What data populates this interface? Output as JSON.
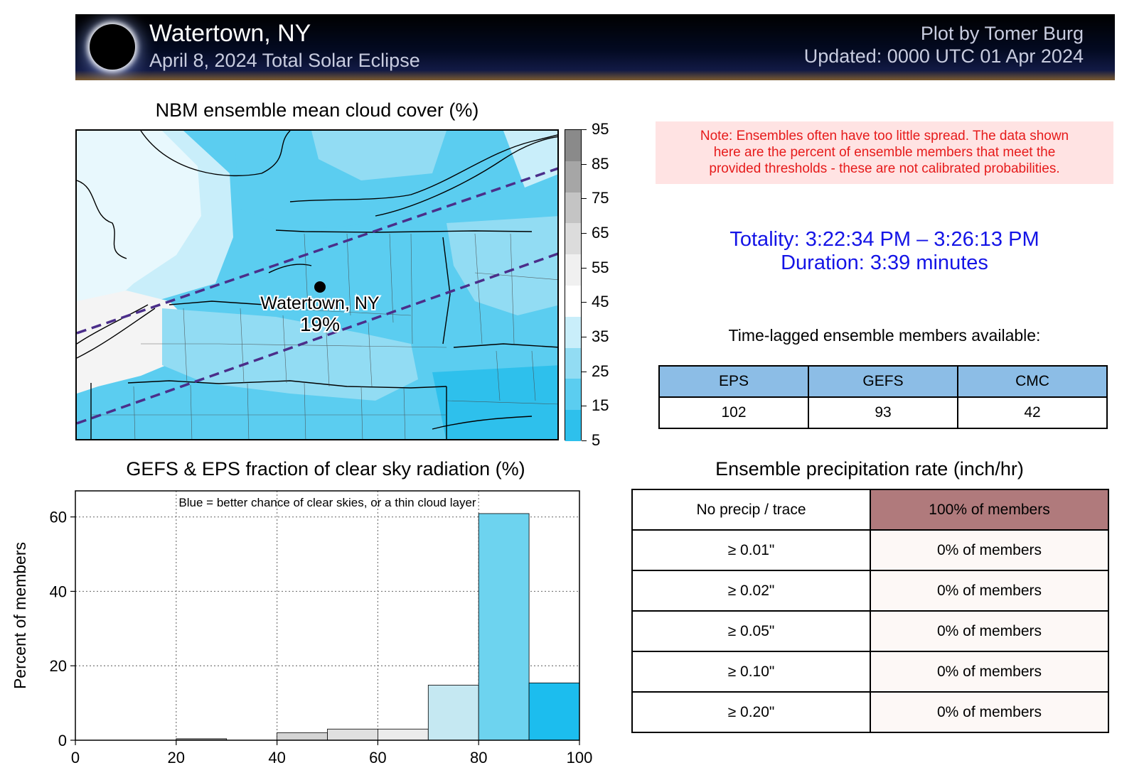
{
  "header": {
    "title": "Watertown, NY",
    "subtitle": "April 8, 2024 Total Solar Eclipse",
    "credit": "Plot by Tomer Burg",
    "updated": "Updated: 0000 UTC 01 Apr 2024"
  },
  "map": {
    "title": "NBM ensemble mean cloud cover (%)",
    "location_label": "Watertown, NY",
    "location_value": "19%",
    "colorbar_ticks": [
      "95",
      "85",
      "75",
      "65",
      "55",
      "45",
      "35",
      "25",
      "15",
      "5"
    ],
    "colorbar_colors": [
      "#8a8a8a",
      "#a6a6a6",
      "#c4c4c4",
      "#dcdcdc",
      "#f0f0f0",
      "#ffffff",
      "#c9eefa",
      "#92dcf3",
      "#5bcdf0",
      "#2ec0ec"
    ]
  },
  "note": {
    "line1": "Note: Ensembles often have too little spread. The data shown",
    "line2": "here are the percent of ensemble members that meet the",
    "line3": "provided thresholds - these are not calibrated probabilities."
  },
  "totality": {
    "time": "Totality: 3:22:34 PM – 3:26:13 PM",
    "duration": "Duration: 3:39 minutes"
  },
  "members": {
    "title": "Time-lagged ensemble members available:",
    "headers": [
      "EPS",
      "GEFS",
      "CMC"
    ],
    "values": [
      "102",
      "93",
      "42"
    ]
  },
  "chart_data": {
    "type": "bar",
    "title": "GEFS & EPS fraction of clear sky radiation (%)",
    "annotation": "Blue = better chance of clear skies, or a thin cloud layer",
    "xlabel": "",
    "ylabel": "Percent of members",
    "xlim": [
      0,
      100
    ],
    "ylim": [
      0,
      67
    ],
    "xticks": [
      "0",
      "20",
      "40",
      "60",
      "80",
      "100"
    ],
    "yticks": [
      "0",
      "20",
      "40",
      "60"
    ],
    "grid": true,
    "bins": [
      {
        "x0": 0,
        "x1": 10,
        "value": 0,
        "color": "#4d4d4d"
      },
      {
        "x0": 10,
        "x1": 20,
        "value": 0,
        "color": "#7a7a7a"
      },
      {
        "x0": 20,
        "x1": 30,
        "value": 0.4,
        "color": "#a6a6a6"
      },
      {
        "x0": 30,
        "x1": 40,
        "value": 0,
        "color": "#bfbfbf"
      },
      {
        "x0": 40,
        "x1": 50,
        "value": 2,
        "color": "#d4d4d4"
      },
      {
        "x0": 50,
        "x1": 60,
        "value": 3,
        "color": "#e0e0e0"
      },
      {
        "x0": 60,
        "x1": 70,
        "value": 3,
        "color": "#ececec"
      },
      {
        "x0": 70,
        "x1": 80,
        "value": 14.8,
        "color": "#c5e8f2"
      },
      {
        "x0": 80,
        "x1": 90,
        "value": 60.9,
        "color": "#6dd3ef"
      },
      {
        "x0": 90,
        "x1": 100,
        "value": 15.4,
        "color": "#1cbdee"
      }
    ]
  },
  "precip": {
    "title": "Ensemble precipitation rate (inch/hr)",
    "rows": [
      {
        "label": "No precip / trace",
        "value": "100% of members"
      },
      {
        "label": "≥ 0.01\"",
        "value": "0% of members"
      },
      {
        "label": "≥ 0.02\"",
        "value": "0% of members"
      },
      {
        "label": "≥ 0.05\"",
        "value": "0% of members"
      },
      {
        "label": "≥ 0.10\"",
        "value": "0% of members"
      },
      {
        "label": "≥ 0.20\"",
        "value": "0% of members"
      }
    ]
  }
}
